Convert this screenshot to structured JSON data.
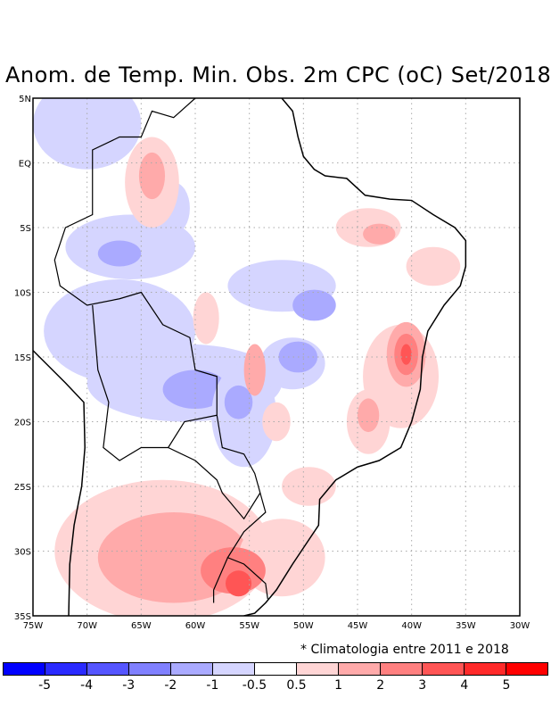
{
  "title": "Anom. de Temp. Min. Obs. 2m CPC (oC) Set/2018",
  "note": "* Climatologia entre 2011 e 2018",
  "chart_data": {
    "type": "map",
    "title": "Anom. de Temp. Min. Obs. 2m CPC (oC) Set/2018",
    "lon_range": [
      -75,
      -30
    ],
    "lat_range": [
      -35,
      5
    ],
    "grid": true,
    "lat_ticks": [
      {
        "v": 5,
        "label": "5N"
      },
      {
        "v": 0,
        "label": "EQ"
      },
      {
        "v": -5,
        "label": "5S"
      },
      {
        "v": -10,
        "label": "10S"
      },
      {
        "v": -15,
        "label": "15S"
      },
      {
        "v": -20,
        "label": "20S"
      },
      {
        "v": -25,
        "label": "25S"
      },
      {
        "v": -30,
        "label": "30S"
      },
      {
        "v": -35,
        "label": "35S"
      }
    ],
    "lon_ticks": [
      {
        "v": -75,
        "label": "75W"
      },
      {
        "v": -70,
        "label": "70W"
      },
      {
        "v": -65,
        "label": "65W"
      },
      {
        "v": -60,
        "label": "60W"
      },
      {
        "v": -55,
        "label": "55W"
      },
      {
        "v": -50,
        "label": "50W"
      },
      {
        "v": -45,
        "label": "45W"
      },
      {
        "v": -40,
        "label": "40W"
      },
      {
        "v": -35,
        "label": "35W"
      },
      {
        "v": -30,
        "label": "30W"
      }
    ],
    "colorbar": {
      "colors": [
        "#0000ff",
        "#2a2aff",
        "#5555ff",
        "#8080ff",
        "#aaaaff",
        "#d5d5ff",
        "#ffffff",
        "#ffd5d5",
        "#ffaaaa",
        "#ff8080",
        "#ff5555",
        "#ff2a2a",
        "#ff0000"
      ],
      "labels": [
        "-5",
        "-4",
        "-3",
        "-2",
        "-1",
        "-0.5",
        "0.5",
        "1",
        "2",
        "3",
        "4",
        "5"
      ]
    },
    "anomaly_regions": [
      {
        "lon": -70,
        "lat": 3,
        "rlon": 5,
        "rlat": 3.5,
        "level": 5
      },
      {
        "lon": -66,
        "lat": -6.5,
        "rlon": 6,
        "rlat": 2.5,
        "level": 5
      },
      {
        "lon": -67,
        "lat": -7,
        "rlon": 2,
        "rlat": 1,
        "level": 4
      },
      {
        "lon": -62,
        "lat": -3.5,
        "rlon": 1.5,
        "rlat": 2,
        "level": 5
      },
      {
        "lon": -67,
        "lat": -13,
        "rlon": 7,
        "rlat": 4,
        "level": 5
      },
      {
        "lon": -61,
        "lat": -17,
        "rlon": 9,
        "rlat": 3,
        "level": 5
      },
      {
        "lon": -60,
        "lat": -17.5,
        "rlon": 3,
        "rlat": 1.5,
        "level": 4
      },
      {
        "lon": -55.5,
        "lat": -19.5,
        "rlon": 3,
        "rlat": 4,
        "level": 5
      },
      {
        "lon": -56,
        "lat": -18.5,
        "rlon": 1.3,
        "rlat": 1.3,
        "level": 4
      },
      {
        "lon": -52,
        "lat": -9.5,
        "rlon": 5,
        "rlat": 2,
        "level": 5
      },
      {
        "lon": -49,
        "lat": -11,
        "rlon": 2,
        "rlat": 1.2,
        "level": 4
      },
      {
        "lon": -51,
        "lat": -15.5,
        "rlon": 3,
        "rlat": 2,
        "level": 5
      },
      {
        "lon": -50.5,
        "lat": -15,
        "rlon": 1.8,
        "rlat": 1.2,
        "level": 4
      },
      {
        "lon": -64,
        "lat": -1.5,
        "rlon": 2.5,
        "rlat": 3.5,
        "level": 7
      },
      {
        "lon": -64,
        "lat": -1,
        "rlon": 1.2,
        "rlat": 1.8,
        "level": 8
      },
      {
        "lon": -59,
        "lat": -12,
        "rlon": 1.2,
        "rlat": 2,
        "level": 7
      },
      {
        "lon": -54.5,
        "lat": -16,
        "rlon": 1,
        "rlat": 2,
        "level": 8
      },
      {
        "lon": -44,
        "lat": -5,
        "rlon": 3,
        "rlat": 1.5,
        "level": 7
      },
      {
        "lon": -43,
        "lat": -5.5,
        "rlon": 1.5,
        "rlat": 0.8,
        "level": 8
      },
      {
        "lon": -38,
        "lat": -8,
        "rlon": 2.5,
        "rlat": 1.5,
        "level": 7
      },
      {
        "lon": -41,
        "lat": -16.5,
        "rlon": 3.5,
        "rlat": 4,
        "level": 7
      },
      {
        "lon": -40.5,
        "lat": -14.8,
        "rlon": 1.8,
        "rlat": 2.5,
        "level": 8
      },
      {
        "lon": -40.5,
        "lat": -14.8,
        "rlon": 1.1,
        "rlat": 1.6,
        "level": 9
      },
      {
        "lon": -40.5,
        "lat": -14.8,
        "rlon": 0.5,
        "rlat": 0.8,
        "level": 10
      },
      {
        "lon": -44,
        "lat": -20,
        "rlon": 2,
        "rlat": 2.5,
        "level": 7
      },
      {
        "lon": -44,
        "lat": -19.5,
        "rlon": 1,
        "rlat": 1.3,
        "level": 8
      },
      {
        "lon": -52.5,
        "lat": -20,
        "rlon": 1.3,
        "rlat": 1.5,
        "level": 7
      },
      {
        "lon": -49.5,
        "lat": -25,
        "rlon": 2.5,
        "rlat": 1.5,
        "level": 7
      },
      {
        "lon": -63,
        "lat": -30,
        "rlon": 10,
        "rlat": 5.5,
        "level": 7
      },
      {
        "lon": -62,
        "lat": -30.5,
        "rlon": 7,
        "rlat": 3.5,
        "level": 8
      },
      {
        "lon": -52,
        "lat": -30.5,
        "rlon": 4,
        "rlat": 3,
        "level": 7
      },
      {
        "lon": -56.5,
        "lat": -31.5,
        "rlon": 3,
        "rlat": 1.8,
        "level": 9
      },
      {
        "lon": -56,
        "lat": -32.5,
        "rlon": 1.2,
        "rlat": 1,
        "level": 10
      }
    ],
    "coastline": [
      [
        -75,
        -14.5
      ],
      [
        -72,
        -17
      ],
      [
        -70.3,
        -18.5
      ],
      [
        -70.2,
        -22
      ],
      [
        -70.5,
        -25
      ],
      [
        -71.2,
        -28
      ],
      [
        -71.6,
        -31
      ],
      [
        -71.7,
        -35
      ]
    ],
    "coastline_east": [
      [
        -52,
        5
      ],
      [
        -51,
        4
      ],
      [
        -50.5,
        2
      ],
      [
        -50,
        0.5
      ],
      [
        -49,
        -0.5
      ],
      [
        -48,
        -1
      ],
      [
        -46,
        -1.2
      ],
      [
        -44.3,
        -2.5
      ],
      [
        -42,
        -2.8
      ],
      [
        -40,
        -2.9
      ],
      [
        -38,
        -4
      ],
      [
        -36,
        -5
      ],
      [
        -35,
        -6
      ],
      [
        -35,
        -8
      ],
      [
        -35.5,
        -9.5
      ],
      [
        -37,
        -11
      ],
      [
        -38.5,
        -13
      ],
      [
        -39,
        -15
      ],
      [
        -39.2,
        -17.5
      ],
      [
        -40,
        -20
      ],
      [
        -41,
        -22
      ],
      [
        -43,
        -23
      ],
      [
        -45,
        -23.5
      ],
      [
        -47,
        -24.5
      ],
      [
        -48.5,
        -26
      ],
      [
        -48.6,
        -28
      ],
      [
        -49.8,
        -29.5
      ],
      [
        -51,
        -31
      ],
      [
        -52.5,
        -33
      ],
      [
        -53.5,
        -34
      ],
      [
        -54.5,
        -34.8
      ],
      [
        -55.5,
        -35
      ]
    ],
    "borders": [
      [
        [
          -60,
          5
        ],
        [
          -62,
          3.5
        ],
        [
          -64,
          4
        ],
        [
          -65,
          2
        ],
        [
          -67,
          2
        ],
        [
          -69.5,
          1
        ],
        [
          -69.5,
          -4
        ],
        [
          -72,
          -5
        ],
        [
          -73,
          -7.5
        ],
        [
          -72.5,
          -9.5
        ],
        [
          -70,
          -11
        ],
        [
          -67,
          -10.5
        ],
        [
          -65,
          -10
        ],
        [
          -63,
          -12.5
        ],
        [
          -60.5,
          -13.5
        ],
        [
          -60,
          -16
        ],
        [
          -58,
          -16.5
        ],
        [
          -58,
          -19.5
        ],
        [
          -57.5,
          -22
        ],
        [
          -55.5,
          -22.5
        ],
        [
          -54.5,
          -24
        ],
        [
          -54,
          -25.5
        ],
        [
          -53.5,
          -27
        ],
        [
          -55.5,
          -28.5
        ],
        [
          -57,
          -30.5
        ],
        [
          -55.5,
          -31
        ],
        [
          -53.5,
          -32.5
        ],
        [
          -53.3,
          -33.7
        ]
      ],
      [
        [
          -69.5,
          -11
        ],
        [
          -69,
          -16
        ],
        [
          -68,
          -18.5
        ],
        [
          -68.5,
          -22
        ],
        [
          -67,
          -23
        ],
        [
          -65,
          -22
        ],
        [
          -62.5,
          -22
        ],
        [
          -61,
          -20
        ],
        [
          -58,
          -19.5
        ]
      ],
      [
        [
          -62.5,
          -22
        ],
        [
          -60,
          -23
        ],
        [
          -58,
          -24.5
        ],
        [
          -57.5,
          -25.5
        ],
        [
          -55.5,
          -27.5
        ],
        [
          -54,
          -25.5
        ]
      ],
      [
        [
          -57,
          -30.5
        ],
        [
          -58.3,
          -33
        ],
        [
          -58.3,
          -34
        ]
      ]
    ]
  }
}
